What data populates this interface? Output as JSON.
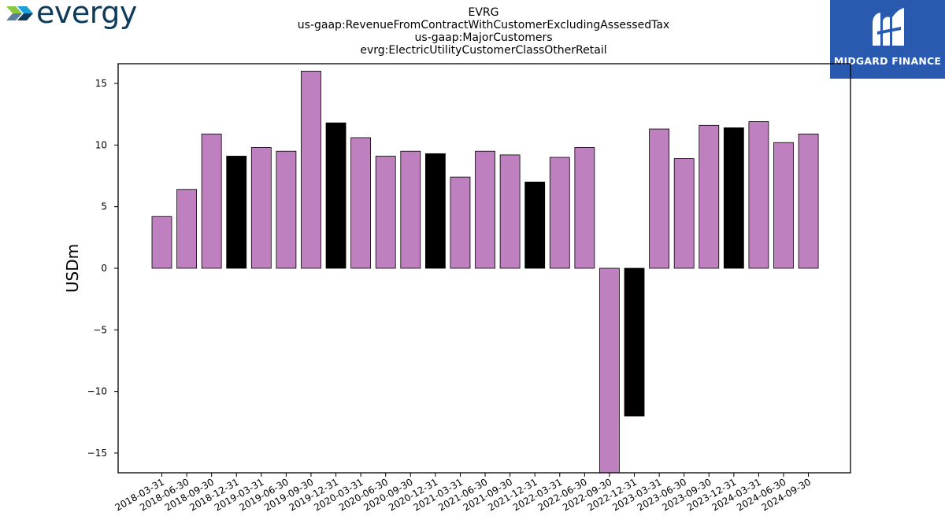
{
  "brand": {
    "left_logo_text": "evergy",
    "right_logo_text": "MIDGARD FINANCE"
  },
  "titles": [
    "EVRG",
    "us-gaap:RevenueFromContractWithCustomerExcludingAssessedTax",
    "us-gaap:MajorCustomers",
    "evrg:ElectricUtilityCustomerClassOtherRetail"
  ],
  "chart_data": {
    "type": "bar",
    "ylabel": "USDm",
    "xlabel": "",
    "ylim": [
      -16.6,
      16.6
    ],
    "yticks": [
      -15,
      -10,
      -5,
      0,
      5,
      10,
      15
    ],
    "ytick_labels": [
      "−15",
      "−10",
      "−5",
      "0",
      "5",
      "10",
      "15"
    ],
    "colors": {
      "quarter": "#bf80bf",
      "year_end": "#000000"
    },
    "categories": [
      "2018-03-31",
      "2018-06-30",
      "2018-09-30",
      "2018-12-31",
      "2019-03-31",
      "2019-06-30",
      "2019-09-30",
      "2019-12-31",
      "2020-03-31",
      "2020-06-30",
      "2020-09-30",
      "2020-12-31",
      "2021-03-31",
      "2021-06-30",
      "2021-09-30",
      "2021-12-31",
      "2022-03-31",
      "2022-06-30",
      "2022-09-30",
      "2022-12-31",
      "2023-03-31",
      "2023-06-30",
      "2023-09-30",
      "2023-12-31",
      "2024-03-31",
      "2024-06-30",
      "2024-09-30"
    ],
    "values": [
      4.2,
      6.4,
      10.9,
      9.1,
      9.8,
      9.5,
      16.0,
      11.8,
      10.6,
      9.1,
      9.5,
      9.3,
      7.4,
      9.5,
      9.2,
      7.0,
      9.0,
      9.8,
      -16.7,
      -12.0,
      11.3,
      8.9,
      11.6,
      11.4,
      11.9,
      10.2,
      10.9
    ],
    "year_end_flags": [
      false,
      false,
      false,
      true,
      false,
      false,
      false,
      true,
      false,
      false,
      false,
      true,
      false,
      false,
      false,
      true,
      false,
      false,
      false,
      true,
      false,
      false,
      false,
      true,
      false,
      false,
      false
    ]
  }
}
